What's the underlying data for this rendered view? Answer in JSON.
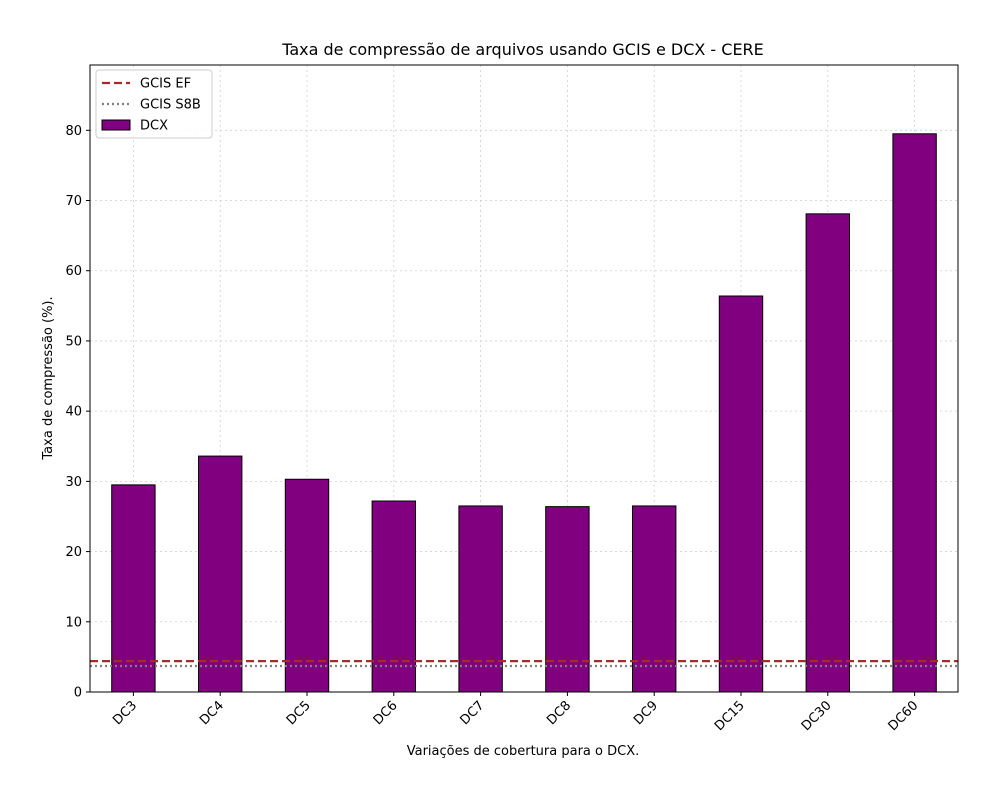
{
  "chart_data": {
    "type": "bar",
    "title": "Taxa de compressão de arquivos usando GCIS e DCX -  CERE",
    "xlabel": "Variações de cobertura para o DCX.",
    "ylabel": "Taxa de compressão (%).",
    "categories": [
      "DC3",
      "DC4",
      "DC5",
      "DC6",
      "DC7",
      "DC8",
      "DC9",
      "DC15",
      "DC30",
      "DC60"
    ],
    "series": [
      {
        "name": "DCX",
        "values": [
          29.5,
          33.6,
          30.3,
          27.2,
          26.5,
          26.4,
          26.5,
          56.4,
          68.1,
          79.5
        ],
        "color": "#800080"
      }
    ],
    "reference_lines": [
      {
        "name": "GCIS EF",
        "value": 4.4,
        "color": "#a52a2a",
        "style": "dashed"
      },
      {
        "name": "GCIS S8B",
        "value": 3.7,
        "color": "#808080",
        "style": "dotted"
      }
    ],
    "ylim": [
      0,
      89.3
    ],
    "yticks": [
      0,
      10,
      20,
      30,
      40,
      50,
      60,
      70,
      80
    ],
    "grid": true,
    "legend_position": "top-left",
    "legend_order": [
      "GCIS EF",
      "GCIS S8B",
      "DCX"
    ]
  }
}
